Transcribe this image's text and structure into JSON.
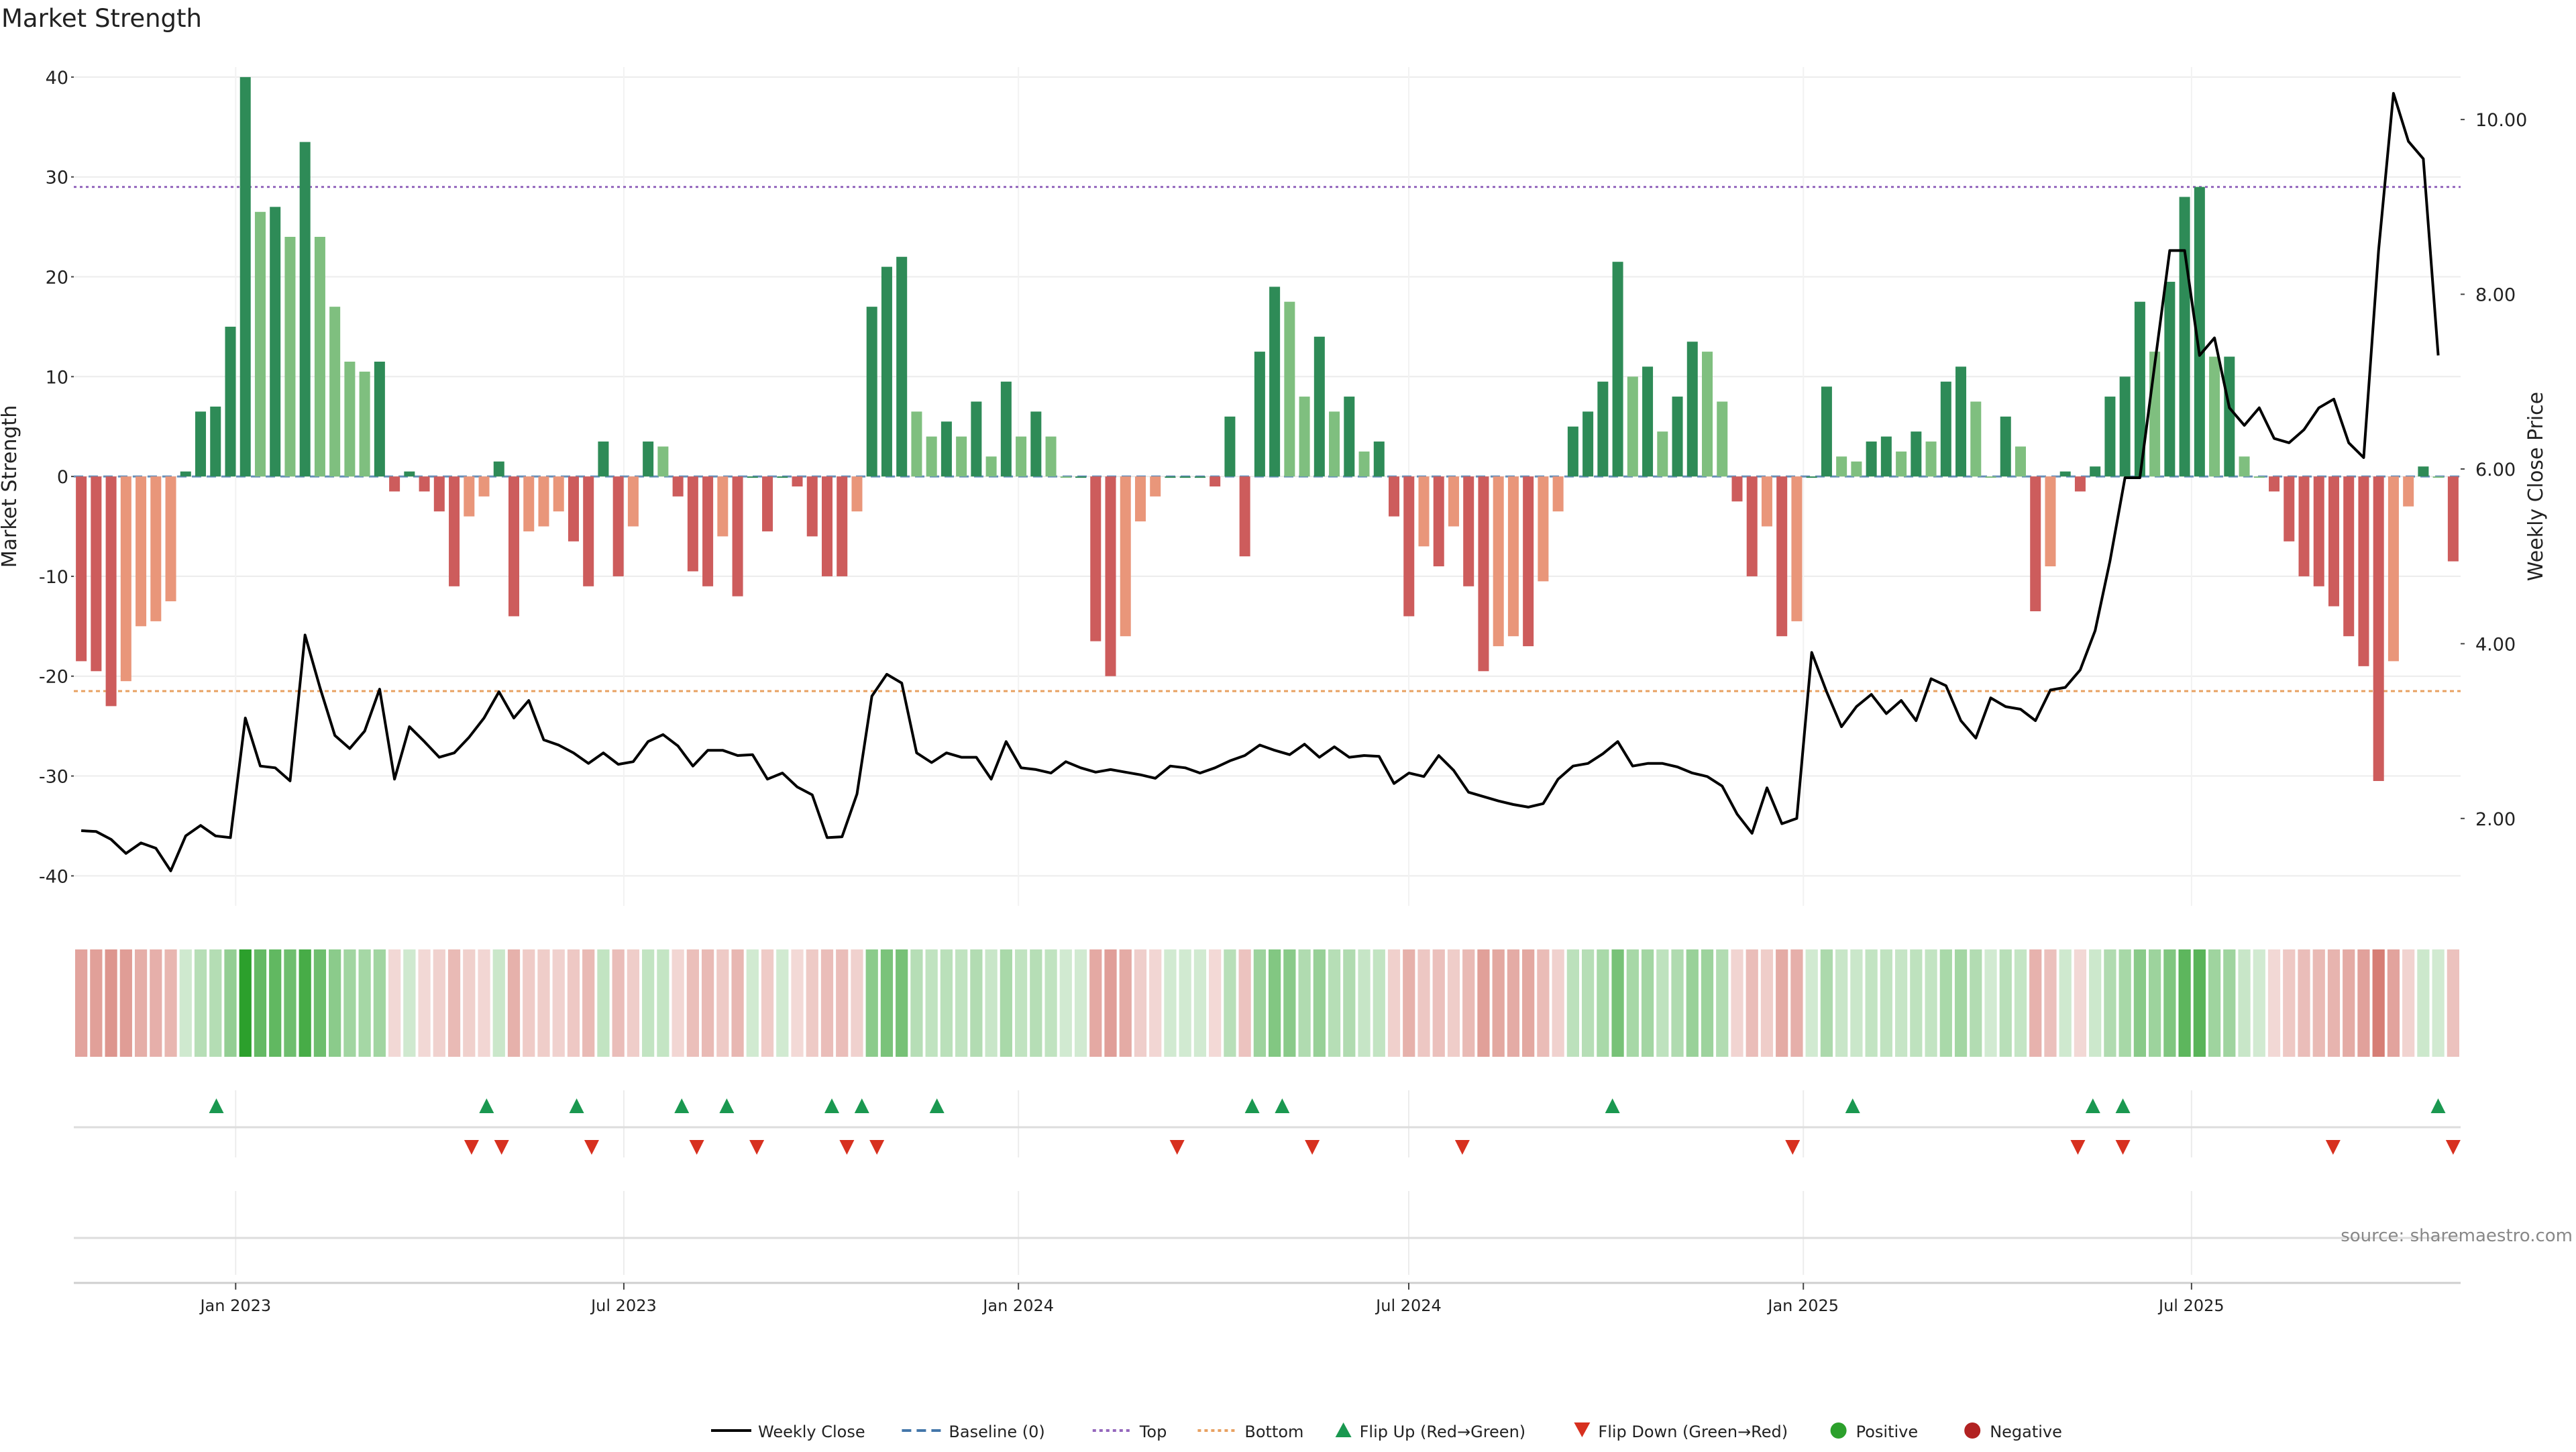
{
  "title": "Market Strength",
  "source": "source: sharemaestro.com",
  "colors": {
    "strong_green": "#2e8b57",
    "light_green": "#7fbf7f",
    "strong_red": "#cd5c5c",
    "light_red": "#e9967a",
    "top_line": "#9467bd",
    "bottom_line": "#e8a162",
    "baseline": "#4477aa",
    "price_line": "#000000",
    "flip_up": "#1a9850",
    "flip_down": "#d7301f",
    "positive": "#2ca02c",
    "negative": "#b22222"
  },
  "legend": [
    {
      "label": "Weekly Close",
      "kind": "line",
      "color": "#000000"
    },
    {
      "label": "Baseline (0)",
      "kind": "dash",
      "color": "#4477aa"
    },
    {
      "label": "Top",
      "kind": "dot",
      "color": "#9467bd"
    },
    {
      "label": "Bottom",
      "kind": "dot",
      "color": "#e8a162"
    },
    {
      "label": "Flip Up (Red→Green)",
      "kind": "tri-up",
      "color": "#1a9850"
    },
    {
      "label": "Flip Down (Green→Red)",
      "kind": "tri-down",
      "color": "#d7301f"
    },
    {
      "label": "Positive",
      "kind": "circle",
      "color": "#2ca02c"
    },
    {
      "label": "Negative",
      "kind": "circle",
      "color": "#b22222"
    }
  ],
  "chart_data": {
    "type": "bar",
    "ylabel": "Market Strength",
    "y2label": "Weekly Close Price",
    "ylim": [
      -43,
      41
    ],
    "y2lim": [
      1.0,
      10.6
    ],
    "yticks": [
      40,
      30,
      20,
      10,
      0,
      -10,
      -20,
      -30,
      -40
    ],
    "y2ticks": [
      "10.00",
      "8.00",
      "6.00",
      "4.00",
      "2.00"
    ],
    "top_level": 29,
    "bottom_level": -21.5,
    "date_range": [
      "2022-10-21",
      "2025-10-31"
    ],
    "xticks": [
      {
        "label": "Jan 2023",
        "date": "2023-01-01"
      },
      {
        "label": "Jul 2023",
        "date": "2023-07-01"
      },
      {
        "label": "Jan 2024",
        "date": "2024-01-01"
      },
      {
        "label": "Jul 2024",
        "date": "2024-07-01"
      },
      {
        "label": "Jan 2025",
        "date": "2025-01-01"
      },
      {
        "label": "Jul 2025",
        "date": "2025-07-01"
      }
    ],
    "series": [
      {
        "name": "Market Strength",
        "kind": "bar",
        "values": [
          -18.5,
          -19.5,
          -23,
          -20.5,
          -15,
          -14.5,
          -12.5,
          0.5,
          6.5,
          7,
          15,
          40,
          26.5,
          27,
          24,
          33.5,
          24,
          17,
          11.5,
          10.5,
          11.5,
          -1.5,
          0.5,
          -1.5,
          -3.5,
          -11,
          -4,
          -2,
          1.5,
          -14,
          -5.5,
          -5,
          -3.5,
          -6.5,
          -11,
          3.5,
          -10,
          -5,
          3.5,
          3,
          -2,
          -9.5,
          -11,
          -6,
          -12,
          0,
          -5.5,
          0,
          -1,
          -6,
          -10,
          -10,
          -3.5,
          17,
          21,
          22,
          6.5,
          4,
          5.5,
          4,
          7.5,
          2,
          9.5,
          4,
          6.5,
          4,
          0,
          0,
          -16.5,
          -20,
          -16,
          -4.5,
          -2,
          0,
          0,
          0,
          -1,
          6,
          -8,
          12.5,
          19,
          17.5,
          8,
          14,
          6.5,
          8,
          2.5,
          3.5,
          -4,
          -14,
          -7,
          -9,
          -5,
          -11,
          -19.5,
          -17,
          -16,
          -17,
          -10.5,
          -3.5,
          5,
          6.5,
          9.5,
          21.5,
          10,
          11,
          4.5,
          8,
          13.5,
          12.5,
          7.5,
          -2.5,
          -10,
          -5,
          -16,
          -14.5,
          0,
          9,
          2,
          1.5,
          3.5,
          4,
          2.5,
          4.5,
          3.5,
          9.5,
          11,
          7.5,
          0,
          6,
          3,
          -13.5,
          -9,
          0.5,
          -1.5,
          1,
          8,
          10,
          17.5,
          12.5,
          19.5,
          28,
          29,
          12,
          12,
          2,
          0,
          -1.5,
          -6.5,
          -10,
          -11,
          -13,
          -16,
          -19,
          -30.5,
          -18.5,
          -3,
          1,
          0,
          -8.5
        ]
      },
      {
        "name": "Weekly Close",
        "kind": "line",
        "values": [
          1.86,
          1.85,
          1.76,
          1.6,
          1.72,
          1.66,
          1.4,
          1.8,
          1.92,
          1.8,
          1.78,
          3.15,
          2.6,
          2.58,
          2.43,
          4.1,
          3.5,
          2.95,
          2.8,
          3.0,
          3.48,
          2.45,
          3.05,
          2.88,
          2.7,
          2.75,
          2.93,
          3.15,
          3.45,
          3.15,
          3.35,
          2.9,
          2.84,
          2.75,
          2.63,
          2.75,
          2.62,
          2.65,
          2.88,
          2.96,
          2.83,
          2.6,
          2.78,
          2.78,
          2.72,
          2.73,
          2.45,
          2.52,
          2.36,
          2.27,
          1.78,
          1.79,
          2.28,
          3.4,
          3.65,
          3.55,
          2.75,
          2.64,
          2.75,
          2.7,
          2.7,
          2.45,
          2.88,
          2.58,
          2.56,
          2.52,
          2.65,
          2.58,
          2.53,
          2.56,
          2.53,
          2.5,
          2.46,
          2.6,
          2.58,
          2.52,
          2.58,
          2.66,
          2.72,
          2.84,
          2.78,
          2.73,
          2.85,
          2.7,
          2.82,
          2.7,
          2.72,
          2.71,
          2.4,
          2.52,
          2.48,
          2.72,
          2.55,
          2.3,
          2.25,
          2.2,
          2.16,
          2.13,
          2.17,
          2.45,
          2.6,
          2.63,
          2.74,
          2.88,
          2.6,
          2.63,
          2.63,
          2.59,
          2.52,
          2.48,
          2.37,
          2.05,
          1.83,
          2.35,
          1.94,
          2.0,
          3.9,
          3.45,
          3.05,
          3.28,
          3.42,
          3.2,
          3.35,
          3.12,
          3.6,
          3.52,
          3.12,
          2.92,
          3.38,
          3.28,
          3.25,
          3.12,
          3.47,
          3.5,
          3.7,
          4.15,
          4.95,
          5.9,
          5.9,
          7.2,
          8.5,
          8.5,
          7.3,
          7.5,
          6.7,
          6.5,
          6.7,
          6.35,
          6.3,
          6.45,
          6.7,
          6.8,
          6.3,
          6.13,
          8.5,
          10.3,
          9.75,
          9.55,
          7.3
        ]
      },
      {
        "name": "Flip Up (Red→Green)",
        "kind": "marker",
        "dates": [
          "2022-12-23",
          "2023-04-28",
          "2023-06-09",
          "2023-07-28",
          "2023-08-18",
          "2023-10-06",
          "2023-10-20",
          "2023-11-24",
          "2024-04-19",
          "2024-05-03",
          "2024-10-04",
          "2025-01-24",
          "2025-05-16",
          "2025-05-30",
          "2025-10-24"
        ]
      },
      {
        "name": "Flip Down (Green→Red)",
        "kind": "marker",
        "dates": [
          "2023-04-21",
          "2023-05-05",
          "2023-06-16",
          "2023-08-04",
          "2023-09-01",
          "2023-10-13",
          "2023-10-27",
          "2024-03-15",
          "2024-05-17",
          "2024-07-26",
          "2024-12-27",
          "2025-05-09",
          "2025-05-30",
          "2025-09-05",
          "2025-10-31"
        ]
      }
    ]
  }
}
